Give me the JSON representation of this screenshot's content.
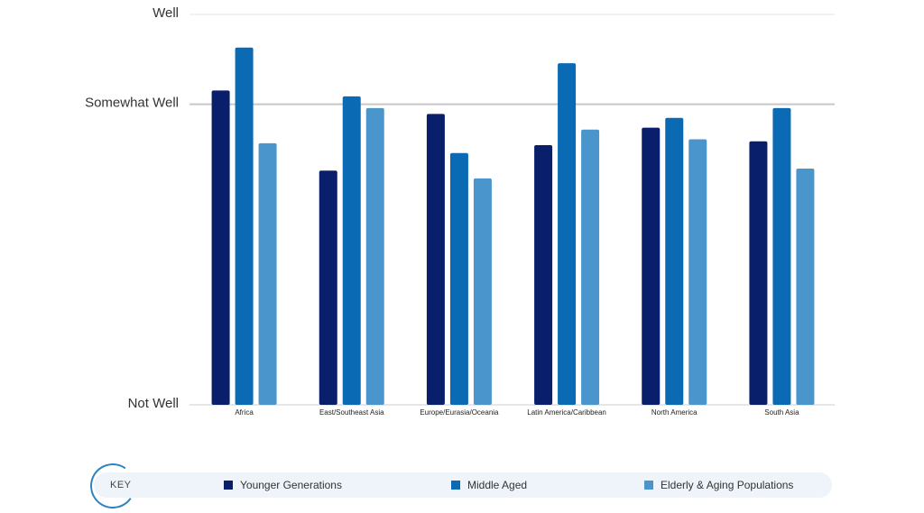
{
  "chart_data": {
    "type": "bar",
    "title": "",
    "xlabel": "",
    "ylabel": "",
    "ylim": [
      0,
      2
    ],
    "y_ticks": [
      {
        "value": 0,
        "label": "Not Well"
      },
      {
        "value": 1.54,
        "label": "Somewhat Well"
      },
      {
        "value": 2,
        "label": "Well"
      }
    ],
    "categories": [
      "Africa",
      "East/Southeast Asia",
      "Europe/Eurasia/Oceania",
      "Latin America/Caribbean",
      "North America",
      "South Asia"
    ],
    "series": [
      {
        "name": "Younger Generations",
        "color": "#0a1f6b",
        "values": [
          1.61,
          1.2,
          1.49,
          1.33,
          1.42,
          1.35
        ]
      },
      {
        "name": "Middle Aged",
        "color": "#0a6ab4",
        "values": [
          1.83,
          1.58,
          1.29,
          1.75,
          1.47,
          1.52
        ]
      },
      {
        "name": "Elderly & Aging Populations",
        "color": "#4a96cc",
        "values": [
          1.34,
          1.52,
          1.16,
          1.41,
          1.36,
          1.21
        ]
      }
    ]
  },
  "legend": {
    "key_label": "KEY",
    "items": [
      {
        "label": "Younger Generations",
        "color": "#0a1f6b"
      },
      {
        "label": "Middle Aged",
        "color": "#0a6ab4"
      },
      {
        "label": "Elderly & Aging Populations",
        "color": "#4a96cc"
      }
    ]
  }
}
